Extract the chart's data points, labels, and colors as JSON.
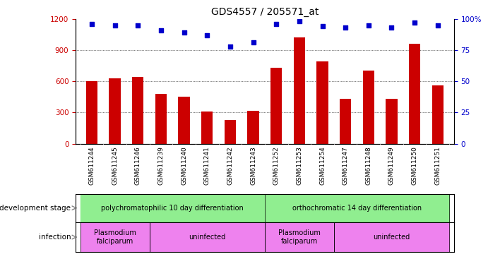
{
  "title": "GDS4557 / 205571_at",
  "samples": [
    "GSM611244",
    "GSM611245",
    "GSM611246",
    "GSM611239",
    "GSM611240",
    "GSM611241",
    "GSM611242",
    "GSM611243",
    "GSM611252",
    "GSM611253",
    "GSM611254",
    "GSM611247",
    "GSM611248",
    "GSM611249",
    "GSM611250",
    "GSM611251"
  ],
  "counts": [
    600,
    630,
    640,
    480,
    450,
    310,
    230,
    315,
    730,
    1020,
    790,
    430,
    700,
    430,
    960,
    560
  ],
  "percentile_ranks": [
    96,
    95,
    95,
    91,
    89,
    87,
    78,
    81,
    96,
    98,
    94,
    93,
    95,
    93,
    97,
    95
  ],
  "ylim_left": [
    0,
    1200
  ],
  "ylim_right": [
    0,
    100
  ],
  "yticks_left": [
    0,
    300,
    600,
    900,
    1200
  ],
  "yticks_right": [
    0,
    25,
    50,
    75,
    100
  ],
  "bar_color": "#cc0000",
  "dot_color": "#0000cc",
  "background_color": "#ffffff",
  "xticklabel_bg": "#cccccc",
  "dev_stage_groups": [
    {
      "label": "polychromatophilic 10 day differentiation",
      "start": 0,
      "end": 8,
      "color": "#90ee90"
    },
    {
      "label": "orthochromatic 14 day differentiation",
      "start": 8,
      "end": 16,
      "color": "#90ee90"
    }
  ],
  "infection_groups": [
    {
      "label": "Plasmodium\nfalciparum",
      "start": 0,
      "end": 3,
      "color": "#ee82ee"
    },
    {
      "label": "uninfected",
      "start": 3,
      "end": 8,
      "color": "#ee82ee"
    },
    {
      "label": "Plasmodium\nfalciparum",
      "start": 8,
      "end": 11,
      "color": "#ee82ee"
    },
    {
      "label": "uninfected",
      "start": 11,
      "end": 16,
      "color": "#ee82ee"
    }
  ],
  "legend_count_color": "#cc0000",
  "legend_dot_color": "#0000cc"
}
